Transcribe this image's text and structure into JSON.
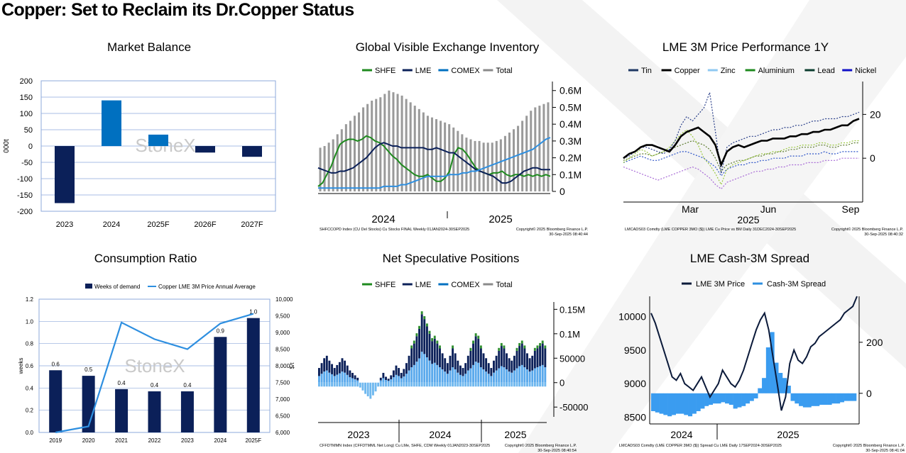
{
  "page_title": "Copper: Set to Reclaim its Dr.Copper Status",
  "colors": {
    "navy": "#0b2059",
    "blue": "#0070c0",
    "green": "#1e8a1e",
    "gray": "#8a8a8a",
    "lightblue": "#6fb8ef"
  },
  "chart_data": [
    {
      "id": "market_balance",
      "type": "bar",
      "title": "Market Balance",
      "ylabel": "000t",
      "ylim": [
        -200,
        200
      ],
      "yticks": [
        200,
        150,
        100,
        50,
        0,
        -50,
        -100,
        -150,
        -200
      ],
      "categories": [
        "2023",
        "2024",
        "2025F",
        "2026F",
        "2027F"
      ],
      "values": [
        -175,
        140,
        35,
        -20,
        -33
      ],
      "colors": [
        "#0b2059",
        "#0070c0",
        "#0070c0",
        "#0b2059",
        "#0b2059"
      ],
      "watermark": "StoneX",
      "grid": true
    },
    {
      "id": "global_inventory",
      "type": "line",
      "title": "Global Visible Exchange Inventory",
      "legend": [
        "SHFE",
        "LME",
        "COMEX",
        "Total"
      ],
      "yticks": [
        "0.6M",
        "0.5M",
        "0.4M",
        "0.3M",
        "0.2M",
        "0.1M",
        "0"
      ],
      "ylim": [
        0,
        0.62
      ],
      "xlabels": [
        "2024",
        "2025"
      ],
      "total": [
        0.26,
        0.27,
        0.29,
        0.31,
        0.34,
        0.37,
        0.4,
        0.42,
        0.45,
        0.47,
        0.5,
        0.52,
        0.54,
        0.55,
        0.56,
        0.58,
        0.6,
        0.59,
        0.58,
        0.57,
        0.55,
        0.53,
        0.51,
        0.49,
        0.47,
        0.45,
        0.44,
        0.43,
        0.42,
        0.41,
        0.4,
        0.38,
        0.36,
        0.34,
        0.32,
        0.31,
        0.3,
        0.3,
        0.29,
        0.29,
        0.29,
        0.3,
        0.31,
        0.33,
        0.35,
        0.37,
        0.39,
        0.42,
        0.45,
        0.48,
        0.5,
        0.51,
        0.52,
        0.53
      ],
      "shfe": [
        0.03,
        0.05,
        0.1,
        0.15,
        0.22,
        0.28,
        0.3,
        0.31,
        0.31,
        0.3,
        0.31,
        0.33,
        0.32,
        0.3,
        0.29,
        0.27,
        0.24,
        0.21,
        0.19,
        0.16,
        0.14,
        0.12,
        0.1,
        0.09,
        0.09,
        0.1,
        0.08,
        0.06,
        0.06,
        0.08,
        0.12,
        0.22,
        0.26,
        0.25,
        0.22,
        0.18,
        0.14,
        0.12,
        0.11,
        0.1,
        0.11,
        0.11,
        0.12,
        0.1,
        0.09,
        0.1,
        0.1,
        0.09,
        0.1,
        0.09,
        0.1,
        0.09,
        0.1,
        0.09
      ],
      "lme": [
        0.14,
        0.13,
        0.12,
        0.11,
        0.11,
        0.12,
        0.12,
        0.13,
        0.14,
        0.16,
        0.18,
        0.2,
        0.23,
        0.26,
        0.28,
        0.29,
        0.28,
        0.27,
        0.27,
        0.26,
        0.26,
        0.26,
        0.26,
        0.26,
        0.26,
        0.25,
        0.25,
        0.26,
        0.25,
        0.24,
        0.23,
        0.23,
        0.21,
        0.19,
        0.17,
        0.15,
        0.13,
        0.12,
        0.11,
        0.1,
        0.09,
        0.07,
        0.05,
        0.05,
        0.06,
        0.08,
        0.1,
        0.12,
        0.13,
        0.14,
        0.14,
        0.13,
        0.13,
        0.13
      ],
      "comex": [
        0.02,
        0.02,
        0.02,
        0.02,
        0.02,
        0.02,
        0.02,
        0.02,
        0.02,
        0.02,
        0.02,
        0.02,
        0.02,
        0.02,
        0.02,
        0.03,
        0.03,
        0.03,
        0.03,
        0.04,
        0.04,
        0.05,
        0.06,
        0.07,
        0.08,
        0.09,
        0.09,
        0.09,
        0.09,
        0.09,
        0.1,
        0.1,
        0.1,
        0.11,
        0.11,
        0.12,
        0.12,
        0.13,
        0.14,
        0.15,
        0.16,
        0.17,
        0.18,
        0.19,
        0.2,
        0.21,
        0.22,
        0.23,
        0.24,
        0.25,
        0.27,
        0.29,
        0.31,
        0.32
      ],
      "footer_left": "SHFCCOPD Index (CU Del Stocks) Cu Stocks FINAL  Weekly 01JAN2024-30SEP2025",
      "footer_right": "Copyright© 2025 Bloomberg Finance L.P.",
      "footer_time": "30-Sep-2025 08:40:44"
    },
    {
      "id": "lme_3m_perf",
      "type": "line",
      "title": "LME 3M Price Performance 1Y",
      "legend": [
        "Tin",
        "Copper",
        "Zinc",
        "Aluminium",
        "Lead",
        "Nickel"
      ],
      "yticks": [
        20,
        0
      ],
      "ylim": [
        -20,
        35
      ],
      "xlabels": [
        "Mar",
        "Jun",
        "Sep"
      ],
      "xyear": "2025",
      "copper": [
        0,
        2,
        3,
        5,
        6,
        6,
        5,
        4,
        3,
        6,
        10,
        12,
        13,
        14,
        12,
        10,
        6,
        -3,
        3,
        5,
        6,
        5,
        6,
        7,
        8,
        8,
        9,
        9,
        9,
        10,
        10,
        11,
        11,
        12,
        12,
        13,
        13,
        14,
        15,
        15,
        17,
        18
      ],
      "tin": [
        0,
        1,
        3,
        5,
        5,
        4,
        3,
        2,
        4,
        8,
        15,
        19,
        17,
        20,
        23,
        30,
        12,
        -7,
        5,
        7,
        8,
        9,
        10,
        10,
        11,
        12,
        13,
        13,
        14,
        14,
        15,
        15,
        16,
        17,
        17,
        18,
        18,
        18,
        19,
        19,
        20,
        21
      ],
      "zinc": [
        -2,
        0,
        2,
        4,
        3,
        1,
        2,
        3,
        5,
        8,
        11,
        13,
        10,
        6,
        0,
        -3,
        -7,
        -12,
        -5,
        -3,
        -2,
        -1,
        0,
        1,
        2,
        2,
        3,
        3,
        4,
        5,
        5,
        6,
        6,
        6,
        7,
        7,
        6,
        6,
        7,
        7,
        8,
        8
      ],
      "aluminium": [
        -1,
        0,
        1,
        2,
        2,
        1,
        2,
        3,
        4,
        5,
        6,
        7,
        8,
        7,
        6,
        4,
        0,
        -6,
        -3,
        -2,
        -1,
        -1,
        0,
        1,
        1,
        2,
        2,
        3,
        3,
        4,
        4,
        5,
        5,
        5,
        6,
        6,
        5,
        5,
        6,
        6,
        7,
        7
      ],
      "lead": [
        -2,
        -1,
        0,
        1,
        0,
        -1,
        -1,
        0,
        1,
        2,
        3,
        3,
        2,
        1,
        0,
        -2,
        -4,
        -8,
        -5,
        -4,
        -3,
        -3,
        -2,
        -2,
        -1,
        -1,
        0,
        0,
        0,
        1,
        1,
        1,
        2,
        2,
        2,
        3,
        2,
        2,
        3,
        3,
        3,
        3
      ],
      "nickel": [
        -4,
        -5,
        -6,
        -7,
        -8,
        -9,
        -10,
        -9,
        -8,
        -7,
        -6,
        -5,
        -4,
        -5,
        -7,
        -9,
        -12,
        -14,
        -11,
        -10,
        -9,
        -8,
        -7,
        -6,
        -6,
        -5,
        -5,
        -4,
        -4,
        -3,
        -3,
        -3,
        -2,
        -2,
        -2,
        -1,
        -1,
        -1,
        0,
        0,
        0,
        0
      ],
      "footer_left": "LMCADS03 Comdty (LME COPPER    3MO ($)) LME Cu Price vs BM  Daily 31DEC2024-30SEP2025",
      "footer_right": "Copyright© 2025 Bloomberg Finance L.P.",
      "footer_time": "30-Sep-2025 08:40:32"
    },
    {
      "id": "consumption_ratio",
      "type": "bar",
      "title": "Consumption Ratio",
      "legend": [
        "Weeks of demand",
        "Copper LME 3M Price Annual Average"
      ],
      "ylabel": "weeks",
      "y2label": "$/t",
      "ylim": [
        0,
        1.2
      ],
      "yticks": [
        "1.2",
        "1.0",
        "0.8",
        "0.6",
        "0.4",
        "0.2",
        "0.0"
      ],
      "y2ticks": [
        "10,000",
        "9,500",
        "9,000",
        "8,500",
        "8,000",
        "7,500",
        "7,000",
        "6,500",
        "6,000"
      ],
      "y2lim": [
        6000,
        10000
      ],
      "categories": [
        "2019",
        "2020",
        "2021",
        "2022",
        "2023",
        "2024",
        "2025F"
      ],
      "values": [
        0.56,
        0.51,
        0.39,
        0.37,
        0.37,
        0.86,
        1.03
      ],
      "labels": [
        "0.6",
        "0.5",
        "0.4",
        "0.4",
        "0.4",
        "0.9",
        "1.0"
      ],
      "line": [
        6000,
        6180,
        9300,
        8800,
        8500,
        9270,
        9560
      ],
      "watermark": "StoneX"
    },
    {
      "id": "net_spec",
      "type": "bar",
      "title": "Net Speculative Positions",
      "legend": [
        "SHFE",
        "LME",
        "COMEX",
        "Total"
      ],
      "yticks": [
        "0.15M",
        "0.1M",
        "50000",
        "0",
        "-50000"
      ],
      "ylim": [
        -70000,
        165000
      ],
      "xlabels": [
        "2023",
        "2024",
        "2025"
      ],
      "total": [
        30,
        40,
        50,
        55,
        45,
        38,
        30,
        36,
        42,
        50,
        45,
        35,
        25,
        20,
        15,
        10,
        -2,
        -8,
        -15,
        -20,
        -25,
        -18,
        -10,
        0,
        10,
        20,
        12,
        8,
        15,
        25,
        35,
        30,
        20,
        28,
        40,
        55,
        70,
        80,
        95,
        110,
        140,
        130,
        115,
        100,
        85,
        90,
        80,
        70,
        60,
        50,
        40,
        55,
        70,
        60,
        45,
        35,
        30,
        40,
        55,
        65,
        80,
        95,
        90,
        70,
        60,
        50,
        40,
        30,
        45,
        55,
        65,
        75,
        70,
        60,
        50,
        45,
        55,
        65,
        75,
        80,
        70,
        60,
        50,
        55,
        65,
        70,
        75,
        80,
        70
      ],
      "footer_left": "CFFDTMMN Index (CFFDTMML Net Long) Cu LMe, SHFE, CDM  Weekly 01JAN2023-30SEP2025",
      "footer_right": "Copyright© 2025 Bloomberg Finance L.P.",
      "footer_time": "30-Sep-2025 08:40:54"
    },
    {
      "id": "cash_3m_spread",
      "type": "line",
      "title": "LME Cash-3M Spread",
      "legend": [
        "LME 3M Price",
        "Cash-3M Spread"
      ],
      "yticks_left": [
        "10000",
        "9500",
        "9000",
        "8500"
      ],
      "ylim_left": [
        8400,
        10300
      ],
      "yticks_right": [
        "200",
        "0"
      ],
      "ylim_right": [
        -120,
        380
      ],
      "xlabels": [
        "2024",
        "2025"
      ],
      "price": [
        10050,
        9900,
        9700,
        9500,
        9300,
        9100,
        9050,
        9150,
        9000,
        8950,
        8900,
        9000,
        9100,
        8950,
        8800,
        8900,
        9000,
        9200,
        9100,
        9000,
        8950,
        9050,
        9200,
        9400,
        9600,
        9800,
        9950,
        10050,
        9800,
        9400,
        9000,
        8600,
        8800,
        9300,
        9500,
        9350,
        9300,
        9400,
        9550,
        9600,
        9700,
        9750,
        9800,
        9850,
        9900,
        9950,
        10050,
        10100,
        10150,
        10300
      ],
      "spread": [
        -70,
        -75,
        -80,
        -85,
        -90,
        -85,
        -80,
        -80,
        -85,
        -90,
        -80,
        -70,
        -60,
        -50,
        -45,
        -40,
        -40,
        -35,
        -40,
        -45,
        -60,
        -55,
        -50,
        -40,
        -30,
        -20,
        20,
        60,
        180,
        240,
        120,
        80,
        60,
        30,
        -30,
        -40,
        -50,
        -55,
        -55,
        -50,
        -50,
        -45,
        -45,
        -45,
        -40,
        -40,
        -35,
        -30,
        -30,
        -30
      ],
      "footer_left": "LMCADS03 Comdty (LME COPPER    3MO ($)) Spread Cu LME  Daily 17SEP2024-30SEP2025",
      "footer_right": "Copyright© 2025 Bloomberg Finance L.P.",
      "footer_time": "30-Sep-2025 08:41:04"
    }
  ]
}
